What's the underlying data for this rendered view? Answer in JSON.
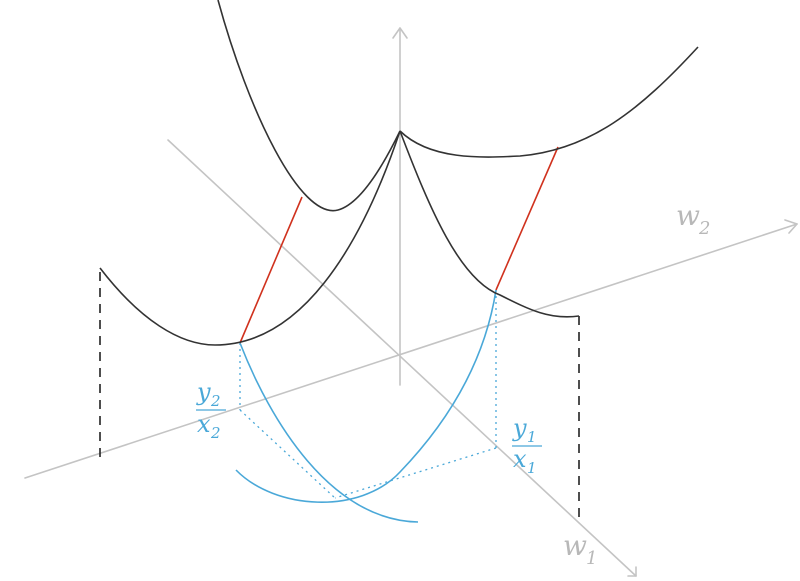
{
  "labels": {
    "w1": {
      "base": "w",
      "sub": "1"
    },
    "w2": {
      "base": "w",
      "sub": "2"
    },
    "ratio_left": {
      "num_base": "y",
      "num_sub": "2",
      "den_base": "x",
      "den_sub": "2"
    },
    "ratio_right": {
      "num_base": "y",
      "num_sub": "1",
      "den_base": "x",
      "den_sub": "1"
    }
  },
  "colors": {
    "axis": "#c4c4c4",
    "surface": "#333333",
    "residual": "#d0321e",
    "projection": "#4aa8d8"
  }
}
